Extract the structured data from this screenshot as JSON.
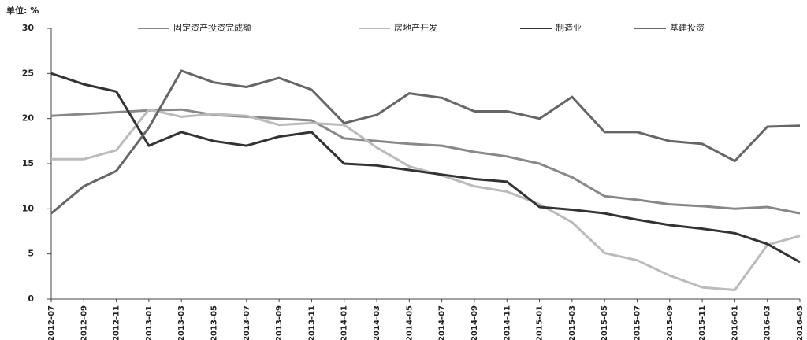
{
  "chart_data": {
    "type": "line",
    "unit_label": "单位: %",
    "categories": [
      "2012-07",
      "2012-09",
      "2012-11",
      "2013-01",
      "2013-03",
      "2013-05",
      "2013-07",
      "2013-09",
      "2013-11",
      "2014-01",
      "2014-03",
      "2014-05",
      "2014-07",
      "2014-09",
      "2014-11",
      "2015-01",
      "2015-03",
      "2015-05",
      "2015-07",
      "2015-09",
      "2015-11",
      "2016-01",
      "2016-03",
      "2016-05"
    ],
    "series": [
      {
        "name": "固定资产投资完成额",
        "color": "#888888",
        "values": [
          20.3,
          20.5,
          20.7,
          20.9,
          21,
          20.4,
          20.2,
          20,
          19.8,
          17.8,
          17.5,
          17.2,
          17,
          16.3,
          15.8,
          15,
          13.5,
          11.4,
          11,
          10.5,
          10.3,
          10,
          10.2,
          9.5
        ]
      },
      {
        "name": "房地产开发",
        "color": "#bbbbbb",
        "values": [
          15.5,
          15.5,
          16.5,
          21,
          20.2,
          20.5,
          20.3,
          19.3,
          19.5,
          19.3,
          16.8,
          14.7,
          13.7,
          12.5,
          11.9,
          10.5,
          8.5,
          5.1,
          4.3,
          2.6,
          1.3,
          1,
          6,
          7
        ]
      },
      {
        "name": "制造业",
        "color": "#333333",
        "values": [
          25,
          23.8,
          23,
          17,
          18.5,
          17.5,
          17,
          18,
          18.5,
          15,
          14.8,
          14.3,
          13.8,
          13.3,
          13,
          10.2,
          9.9,
          9.5,
          8.8,
          8.2,
          7.8,
          7.3,
          6.1,
          4.1
        ]
      },
      {
        "name": "基建投资",
        "color": "#666666",
        "values": [
          9.5,
          12.5,
          14.2,
          19,
          25.3,
          24,
          23.5,
          24.5,
          23.2,
          19.5,
          20.4,
          22.8,
          22.3,
          20.8,
          20.8,
          20,
          22.4,
          18.5,
          18.5,
          17.5,
          17.2,
          15.3,
          19.1,
          19.2
        ]
      }
    ],
    "ylim": [
      0,
      30
    ],
    "yticks": [
      0,
      5,
      10,
      15,
      20,
      25,
      30
    ],
    "grid": false,
    "legend": "top"
  }
}
